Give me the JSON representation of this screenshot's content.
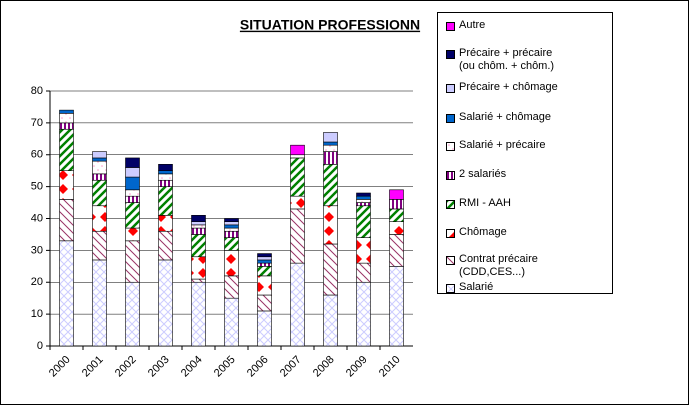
{
  "chart_data": {
    "type": "bar",
    "stacked": true,
    "title": "SITUATION PROFESSIONN",
    "categories": [
      "2000",
      "2001",
      "2002",
      "2003",
      "2004",
      "2005",
      "2006",
      "2007",
      "2008",
      "2009",
      "2010"
    ],
    "series": [
      {
        "name": "Salarié",
        "color": "#ccccff",
        "values": [
          33,
          27,
          20,
          27,
          20,
          15,
          11,
          26,
          16,
          20,
          25
        ]
      },
      {
        "name": "Contrat précaire (CDD,CES...)",
        "color": "#993366",
        "values": [
          13,
          9,
          13,
          9,
          1,
          7,
          5,
          17,
          16,
          6,
          10
        ]
      },
      {
        "name": "Chômage",
        "color": "#ff0000",
        "values": [
          9,
          8,
          4,
          5,
          7,
          8,
          6,
          4,
          12,
          8,
          4
        ]
      },
      {
        "name": "RMI - AAH",
        "color": "#008000",
        "values": [
          13,
          8,
          8,
          9,
          7,
          4,
          3,
          12,
          13,
          10,
          4
        ]
      },
      {
        "name": "2 salariés",
        "color": "#800080",
        "values": [
          2,
          2,
          2,
          2,
          2,
          2,
          1,
          0,
          4,
          1,
          3
        ]
      },
      {
        "name": "Salarié + précaire",
        "color": "#ff99cc",
        "values": [
          3,
          4,
          2,
          2,
          1,
          1,
          0,
          1,
          2,
          1,
          0
        ]
      },
      {
        "name": "Salarié + chômage",
        "color": "#0066cc",
        "values": [
          1,
          1,
          4,
          1,
          0,
          1,
          1,
          0,
          1,
          1,
          0
        ]
      },
      {
        "name": "Précaire + chômage",
        "color": "#ccccff",
        "values": [
          0,
          2,
          3,
          0,
          1,
          1,
          1,
          0,
          3,
          0,
          0
        ]
      },
      {
        "name": "Précaire + précaire (ou chôm. + chôm.)",
        "color": "#000066",
        "values": [
          0,
          0,
          3,
          2,
          2,
          1,
          1,
          0,
          0,
          1,
          0
        ]
      },
      {
        "name": "Autre",
        "color": "#ff00ff",
        "values": [
          0,
          0,
          0,
          0,
          0,
          0,
          0,
          3,
          0,
          0,
          3
        ]
      }
    ],
    "ylim": [
      0,
      80
    ],
    "yticks": [
      0,
      10,
      20,
      30,
      40,
      50,
      60,
      70,
      80
    ],
    "grid": true,
    "legend": "right"
  }
}
